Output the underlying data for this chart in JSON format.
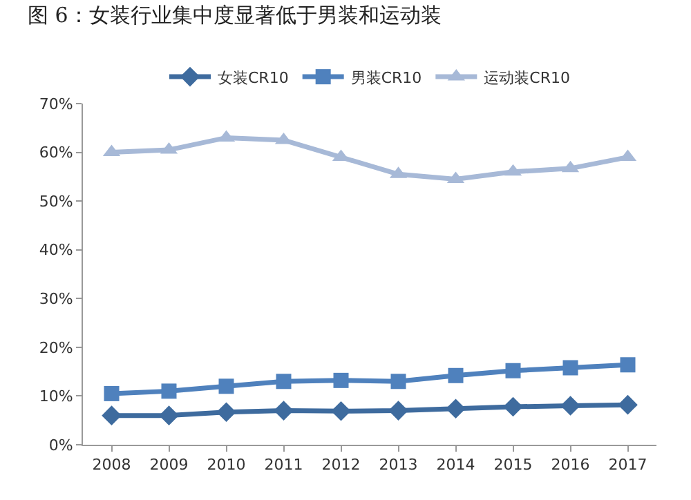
{
  "chart_data": {
    "type": "line",
    "title": "图 6：女装行业集中度显著低于男装和运动装",
    "categories": [
      "2008",
      "2009",
      "2010",
      "2011",
      "2012",
      "2013",
      "2014",
      "2015",
      "2016",
      "2017"
    ],
    "series": [
      {
        "name": "女装CR10",
        "color": "#3e6b9e",
        "marker": "diamond",
        "values": [
          6,
          6,
          6.7,
          7,
          6.9,
          7,
          7.4,
          7.8,
          8,
          8.2
        ]
      },
      {
        "name": "男装CR10",
        "color": "#4f81bd",
        "marker": "square",
        "values": [
          10.5,
          11,
          12,
          13,
          13.2,
          13,
          14.2,
          15.2,
          15.8,
          16.4
        ]
      },
      {
        "name": "运动装CR10",
        "color": "#a7b9d7",
        "marker": "triangle",
        "values": [
          60,
          60.5,
          63,
          62.5,
          59,
          55.5,
          54.5,
          56,
          56.7,
          59
        ]
      }
    ],
    "ylim": [
      0,
      70
    ],
    "yticks": [
      {
        "value": 0,
        "label": "0%"
      },
      {
        "value": 10,
        "label": "10%"
      },
      {
        "value": 20,
        "label": "20%"
      },
      {
        "value": 30,
        "label": "30%"
      },
      {
        "value": 40,
        "label": "40%"
      },
      {
        "value": 50,
        "label": "50%"
      },
      {
        "value": 60,
        "label": "60%"
      },
      {
        "value": 70,
        "label": "70%"
      }
    ],
    "grid": false,
    "legend": "top",
    "line_style": "solid"
  }
}
